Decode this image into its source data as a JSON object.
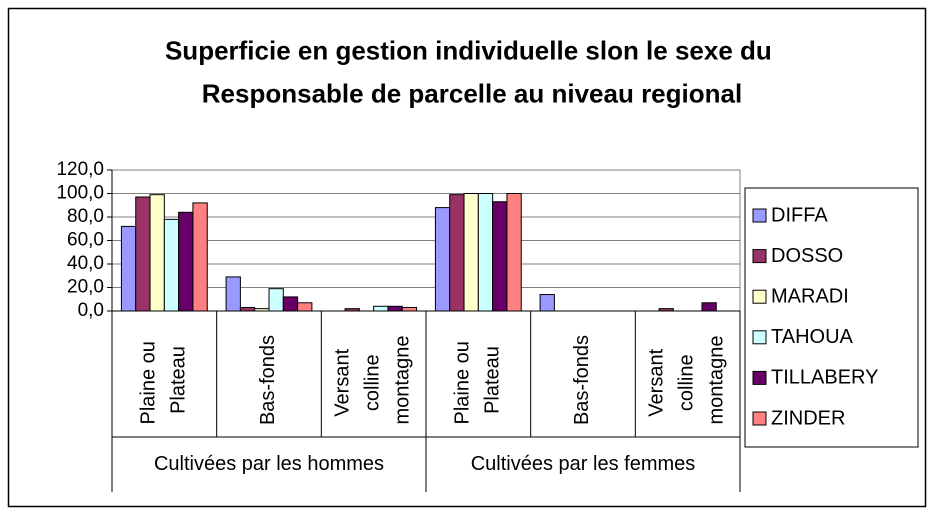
{
  "chart_data": {
    "type": "bar",
    "title": "Superficie en gestion individuelle slon le sexe du Responsable de parcelle au niveau regional",
    "categories": [
      "Plaine ou Plateau",
      "Bas-fonds",
      "Versant colline montagne",
      "Plaine ou Plateau",
      "Bas-fonds",
      "Versant colline montagne"
    ],
    "groups": [
      "Cultivées par les hommes",
      "Cultivées par les femmes"
    ],
    "series": [
      {
        "name": "DIFFA",
        "color": "#9999ff",
        "values": [
          72,
          29,
          0,
          88,
          14,
          0
        ]
      },
      {
        "name": "DOSSO",
        "color": "#993366",
        "values": [
          97,
          3,
          2,
          99,
          0,
          2
        ]
      },
      {
        "name": "MARADI",
        "color": "#ffffcc",
        "values": [
          99,
          2,
          0,
          100,
          0,
          0
        ]
      },
      {
        "name": "TAHOUA",
        "color": "#ccffff",
        "values": [
          78,
          19,
          4,
          100,
          0,
          0
        ]
      },
      {
        "name": "TILLABERY",
        "color": "#660066",
        "values": [
          84,
          12,
          4,
          93,
          0,
          7
        ]
      },
      {
        "name": "ZINDER",
        "color": "#ff8080",
        "values": [
          92,
          7,
          3,
          100,
          0,
          0
        ]
      }
    ],
    "ylim": [
      0,
      120
    ],
    "yticks": [
      {
        "value": 0,
        "label": "0,0"
      },
      {
        "value": 20,
        "label": "20,0"
      },
      {
        "value": 40,
        "label": "40,0"
      },
      {
        "value": 60,
        "label": "60,0"
      },
      {
        "value": 80,
        "label": "80,0"
      },
      {
        "value": 100,
        "label": "100,0"
      },
      {
        "value": 120,
        "label": "120,0"
      }
    ],
    "grid": true,
    "legend": "right"
  }
}
